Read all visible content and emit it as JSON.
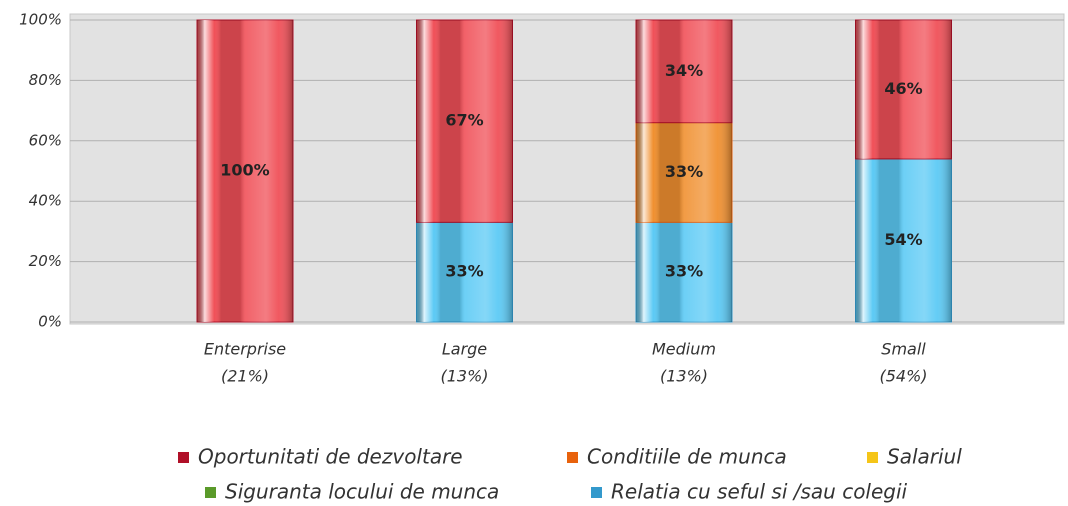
{
  "chart_data": {
    "type": "stacked_bar",
    "categories": [
      [
        "Enterprise",
        "(21%)"
      ],
      [
        "Large",
        "(13%)"
      ],
      [
        "Medium",
        "(13%)"
      ],
      [
        "Small",
        "(54%)"
      ]
    ],
    "series": [
      {
        "name": "Relatia cu seful si /sau colegii",
        "color": "#3399cc",
        "values": [
          null,
          33,
          33,
          54
        ],
        "value_labels": [
          null,
          "33%",
          "33%",
          "54%"
        ]
      },
      {
        "name": "Conditiile de munca",
        "color": "#e8620c",
        "values": [
          null,
          null,
          33,
          null
        ],
        "value_labels": [
          null,
          null,
          "33%",
          null
        ]
      },
      {
        "name": "Oportunitati de dezvoltare",
        "color": "#b01028",
        "values": [
          100,
          67,
          34,
          46
        ],
        "value_labels": [
          "100%",
          "67%",
          "34%",
          "46%"
        ]
      },
      {
        "name": "Salariul",
        "color": "#f5c518",
        "values": [
          null,
          null,
          null,
          null
        ]
      },
      {
        "name": "Siguranta locului de munca",
        "color": "#5a9a2a",
        "values": [
          null,
          null,
          null,
          null
        ]
      }
    ],
    "bar_colors": [
      "#5ccaf5",
      "#f09030",
      "#f05058",
      "#f5d040",
      "#80c050"
    ],
    "legend_order": [
      2,
      1,
      3,
      4,
      0
    ],
    "ylim": [
      0,
      100
    ],
    "yticks": [
      {
        "value": 0,
        "label": "0%"
      },
      {
        "value": 20,
        "label": "20%"
      },
      {
        "value": 40,
        "label": "40%"
      },
      {
        "value": 60,
        "label": "60%"
      },
      {
        "value": 80,
        "label": "80%"
      },
      {
        "value": 100,
        "label": "100%"
      }
    ],
    "grid": true
  }
}
